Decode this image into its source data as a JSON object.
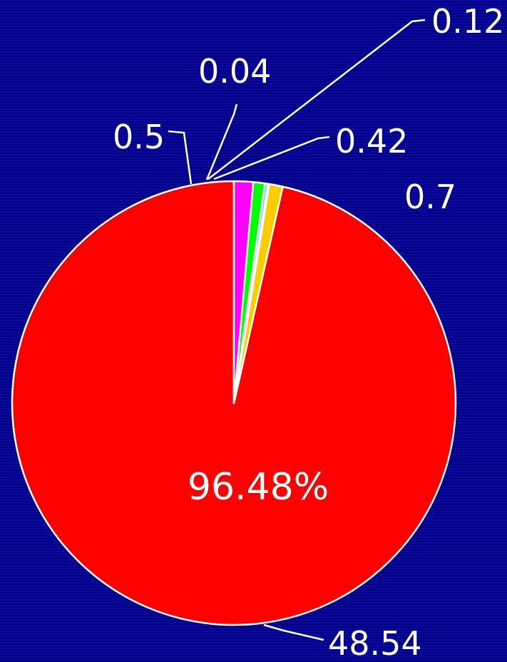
{
  "chart_data": {
    "type": "pie",
    "slices": [
      {
        "value": 48.54,
        "label": "48.54",
        "color": "#ff0000"
      },
      {
        "value": 0.5,
        "label": "0.5",
        "color": "#ffcc00"
      },
      {
        "value": 0.04,
        "label": "0.04",
        "color": "#ffffff"
      },
      {
        "value": 0.12,
        "label": "0.12",
        "color": "#66e0ff"
      },
      {
        "value": 0.42,
        "label": "0.42",
        "color": "#00ff00"
      },
      {
        "value": 0.7,
        "label": "0.7",
        "color": "#ff00ff"
      }
    ],
    "center_label": "96.48%",
    "slice_border_color": "#ffffff",
    "leader_line_color": "#ffffff"
  }
}
